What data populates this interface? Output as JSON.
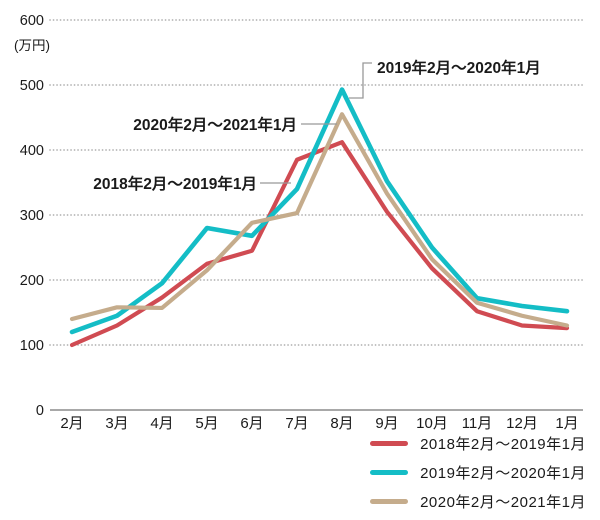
{
  "chart_data": {
    "type": "line",
    "title": "",
    "unit_label": "(万円)",
    "xlabel": "",
    "ylabel": "万円",
    "ylim": [
      0,
      600
    ],
    "ytick_step": 100,
    "grid": "horizontal-dotted",
    "legend_position": "bottom-right",
    "categories": [
      "2月",
      "3月",
      "4月",
      "5月",
      "6月",
      "7月",
      "8月",
      "9月",
      "10月",
      "11月",
      "12月",
      "1月"
    ],
    "series": [
      {
        "name": "2018年2月〜2019年1月",
        "color": "#d04b52",
        "values": [
          100,
          130,
          173,
          225,
          245,
          385,
          412,
          305,
          218,
          152,
          130,
          126
        ]
      },
      {
        "name": "2019年2月〜2020年1月",
        "color": "#14bdc6",
        "values": [
          120,
          145,
          195,
          280,
          268,
          340,
          493,
          352,
          250,
          172,
          160,
          152
        ]
      },
      {
        "name": "2020年2月〜2021年1月",
        "color": "#c5ac8c",
        "values": [
          140,
          158,
          157,
          215,
          288,
          303,
          455,
          333,
          232,
          165,
          145,
          130
        ]
      }
    ],
    "annotations": [
      {
        "text": "2018年2月〜2019年1月",
        "series_index": 0
      },
      {
        "text": "2019年2月〜2020年1月",
        "series_index": 1
      },
      {
        "text": "2020年2月〜2021年1月",
        "series_index": 2
      }
    ]
  },
  "legend": {
    "items": [
      {
        "label": "2018年2月〜2019年1月"
      },
      {
        "label": "2019年2月〜2020年1月"
      },
      {
        "label": "2020年2月〜2021年1月"
      }
    ]
  }
}
